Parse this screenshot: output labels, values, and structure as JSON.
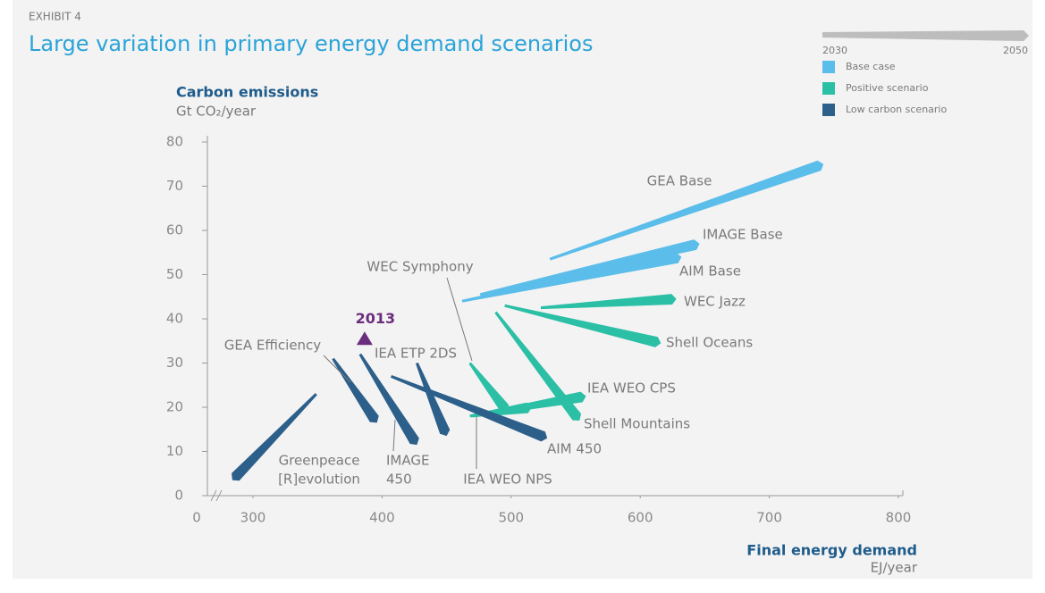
{
  "chart_data": {
    "type": "wedge",
    "exhibit": "EXHIBIT 4",
    "title": "Large variation in primary energy demand scenarios",
    "y_title": "Carbon emissions",
    "y_unit": "Gt CO₂/year",
    "x_title": "Final energy demand",
    "x_unit": "EJ/year",
    "x_origin_label": "0",
    "xlim": [
      255,
      800
    ],
    "xticks": [
      300,
      400,
      500,
      600,
      700,
      800
    ],
    "ylim": [
      0,
      80
    ],
    "yticks": [
      0,
      10,
      20,
      30,
      40,
      50,
      60,
      70,
      80
    ],
    "legend_years": [
      "2030",
      "2050"
    ],
    "legend": [
      {
        "name": "Base case",
        "color": "#5bbde9"
      },
      {
        "name": "Positive scenario",
        "color": "#2bbfa6"
      },
      {
        "name": "Low carbon scenario",
        "color": "#2c5f8a"
      }
    ],
    "series": [
      {
        "label": [
          "GEA Base"
        ],
        "group": 0,
        "x": [
          530,
          742
        ],
        "y": [
          53.5,
          75
        ]
      },
      {
        "label": [
          "IMAGE Base"
        ],
        "group": 0,
        "x": [
          476,
          646
        ],
        "y": [
          45.5,
          57
        ]
      },
      {
        "label": [
          "AIM Base"
        ],
        "group": 0,
        "x": [
          462,
          632
        ],
        "y": [
          44,
          54
        ]
      },
      {
        "label": [
          "WEC Jazz"
        ],
        "group": 1,
        "x": [
          523,
          628
        ],
        "y": [
          42.5,
          44.5
        ]
      },
      {
        "label": [
          "Shell Oceans"
        ],
        "group": 1,
        "x": [
          495,
          616
        ],
        "y": [
          43,
          34.5
        ]
      },
      {
        "label": [
          "Shell Mountains"
        ],
        "group": 1,
        "x": [
          488,
          553
        ],
        "y": [
          41.5,
          17
        ]
      },
      {
        "label": [
          "IEA WEO CPS"
        ],
        "group": 1,
        "x": [
          470,
          558
        ],
        "y": [
          18,
          22.5
        ]
      },
      {
        "label": [
          "WEC Symphony"
        ],
        "group": 1,
        "x": [
          468,
          497
        ],
        "y": [
          30,
          19
        ]
      },
      {
        "label": [
          "IEA WEO NPS"
        ],
        "group": 1,
        "x": [
          468,
          516
        ],
        "y": [
          18,
          20
        ]
      },
      {
        "label": [
          "AIM 450"
        ],
        "group": 2,
        "x": [
          407,
          528
        ],
        "y": [
          27,
          13
        ]
      },
      {
        "label": [
          "IEA ETP 2DS"
        ],
        "group": 2,
        "x": [
          427,
          450
        ],
        "y": [
          30,
          13.5
        ]
      },
      {
        "label": [
          "IMAGE",
          "450"
        ],
        "group": 2,
        "x": [
          383,
          427
        ],
        "y": [
          32,
          11.5
        ]
      },
      {
        "label": [
          "GEA Efficiency"
        ],
        "group": 2,
        "x": [
          362,
          396
        ],
        "y": [
          31,
          16.5
        ]
      },
      {
        "label": [
          "Greenpeace",
          "[R]evolution"
        ],
        "group": 2,
        "x": [
          349,
          284
        ],
        "y": [
          23,
          3.5
        ]
      }
    ],
    "marker": {
      "label": "2013",
      "x": 386.5,
      "y": 35.5,
      "color": "#6b2d7e"
    }
  }
}
